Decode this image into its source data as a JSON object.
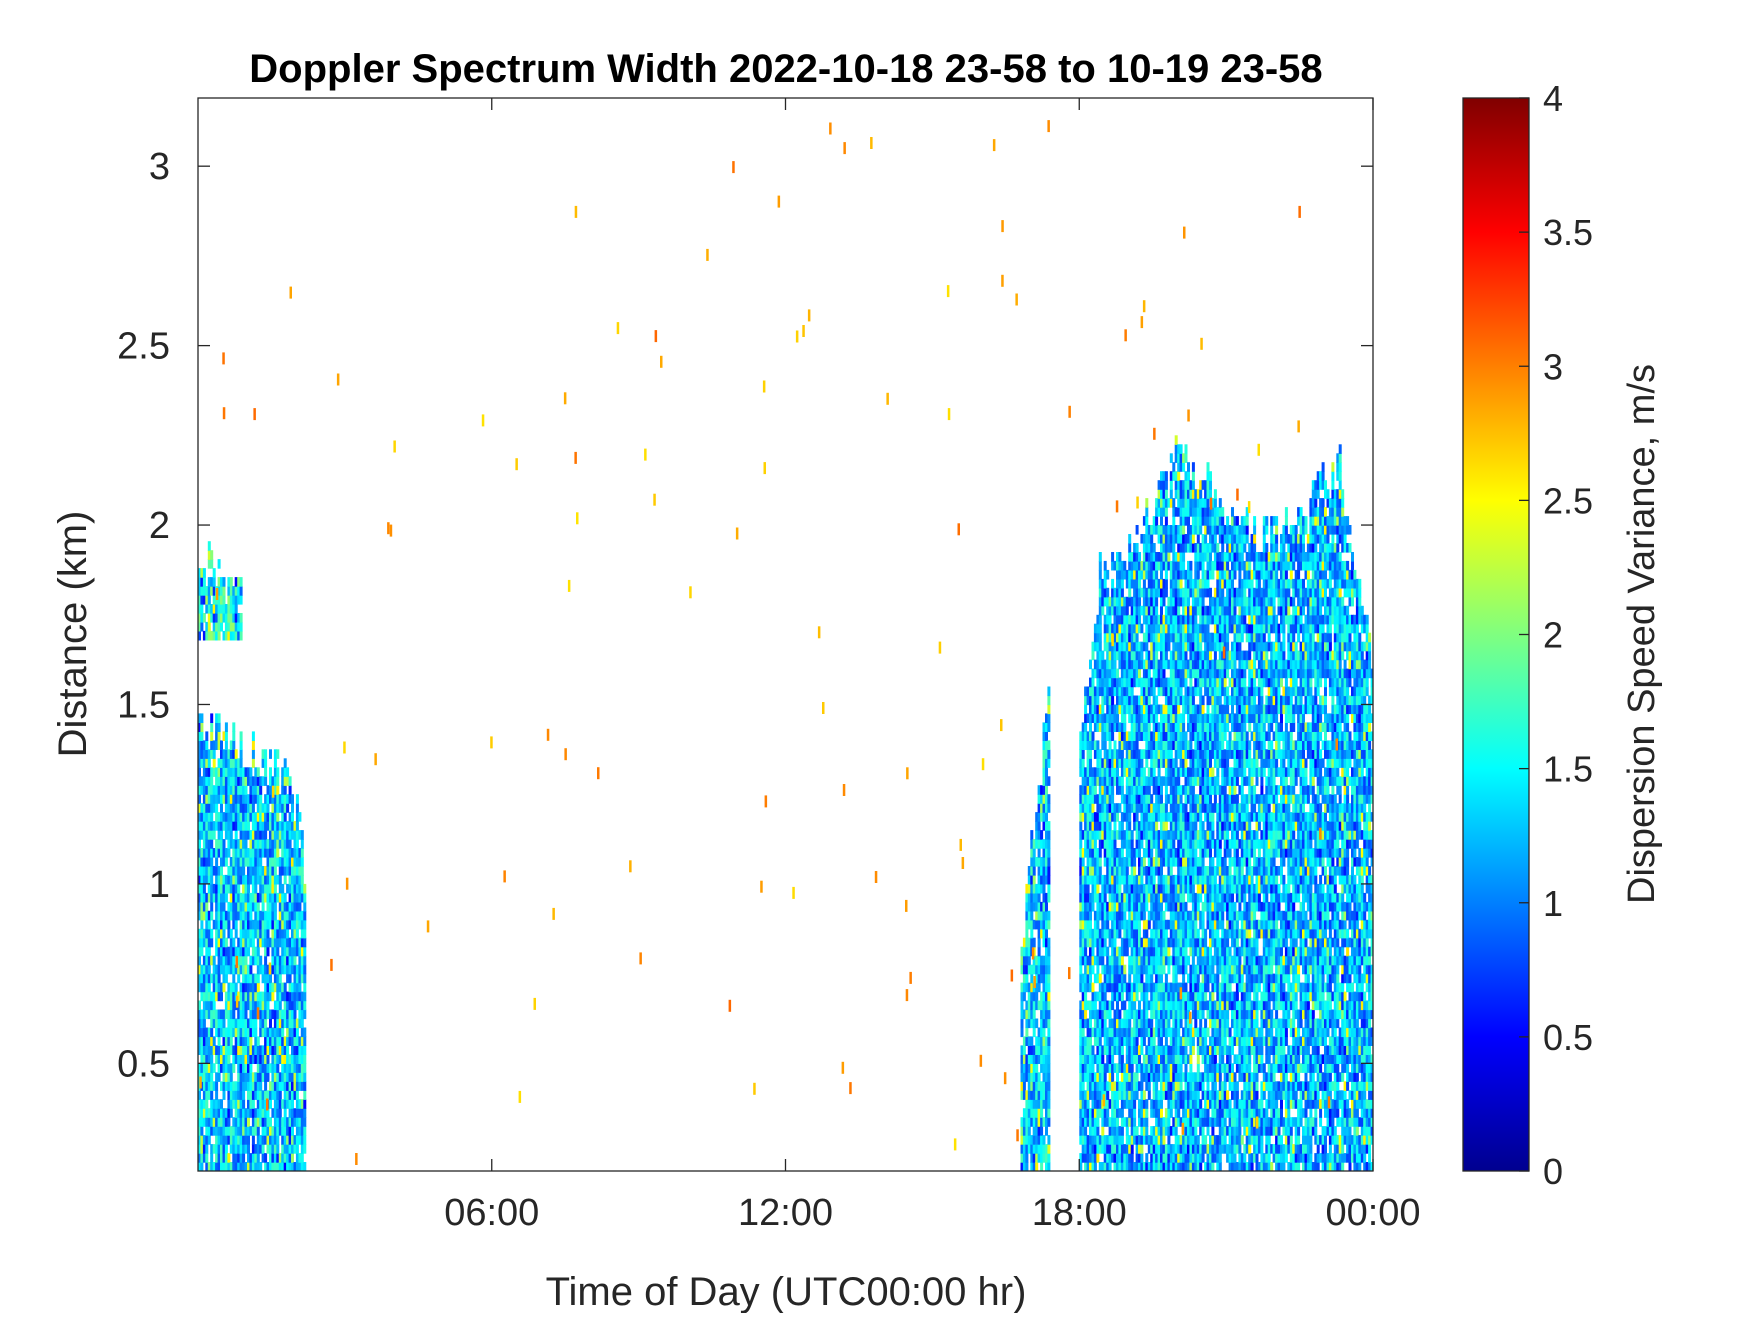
{
  "chart_data": {
    "type": "heatmap",
    "title": "Doppler Spectrum Width 2022-10-18 23-58 to 10-19 23-58",
    "xlabel": "Time of Day (UTC00:00 hr)",
    "ylabel": "Distance (km)",
    "colorbar_label": "Dispersion Speed Variance, m/s",
    "colormap": "jet",
    "xlim_hours": [
      0,
      24
    ],
    "ylim_km": [
      0.2,
      3.19
    ],
    "clim": [
      0,
      4
    ],
    "x_ticks": [
      {
        "value": 6,
        "label": "06:00"
      },
      {
        "value": 12,
        "label": "12:00"
      },
      {
        "value": 18,
        "label": "18:00"
      },
      {
        "value": 24,
        "label": "00:00"
      }
    ],
    "y_ticks": [
      {
        "value": 0.5,
        "label": "0.5"
      },
      {
        "value": 1,
        "label": "1"
      },
      {
        "value": 1.5,
        "label": "1.5"
      },
      {
        "value": 2,
        "label": "2"
      },
      {
        "value": 2.5,
        "label": "2.5"
      },
      {
        "value": 3,
        "label": "3"
      }
    ],
    "colorbar_ticks": [
      {
        "value": 0,
        "label": "0"
      },
      {
        "value": 0.5,
        "label": "0.5"
      },
      {
        "value": 1,
        "label": "1"
      },
      {
        "value": 1.5,
        "label": "1.5"
      },
      {
        "value": 2,
        "label": "2"
      },
      {
        "value": 2.5,
        "label": "2.5"
      },
      {
        "value": 3,
        "label": "3"
      },
      {
        "value": 3.5,
        "label": "3.5"
      },
      {
        "value": 4,
        "label": "4"
      }
    ],
    "grid": false,
    "regions": [
      {
        "name": "early-morning",
        "time_start": 0.0,
        "time_end": 2.2,
        "dist_min": 0.2,
        "dist_top_profile": [
          [
            0,
            1.45
          ],
          [
            0.3,
            1.43
          ],
          [
            0.8,
            1.37
          ],
          [
            1.2,
            1.35
          ],
          [
            1.6,
            1.3
          ],
          [
            2.0,
            1.25
          ],
          [
            2.2,
            0.9
          ]
        ],
        "mean_value": 1.3
      },
      {
        "name": "early-upper-patch",
        "time_start": 0.0,
        "time_end": 0.9,
        "dist_min": 1.68,
        "dist_top_profile": [
          [
            0,
            1.9
          ],
          [
            0.5,
            1.85
          ],
          [
            0.9,
            1.78
          ]
        ],
        "mean_value": 1.6
      },
      {
        "name": "afternoon-narrow-band",
        "time_start": 16.8,
        "time_end": 17.4,
        "dist_min": 0.2,
        "dist_top_profile": [
          [
            16.8,
            0.8
          ],
          [
            17.0,
            1.1
          ],
          [
            17.2,
            1.3
          ],
          [
            17.4,
            1.6
          ]
        ],
        "mean_value": 1.35
      },
      {
        "name": "evening-main",
        "time_start": 18.0,
        "time_end": 24.0,
        "dist_min": 0.2,
        "dist_top_profile": [
          [
            18.0,
            1.4
          ],
          [
            18.4,
            1.85
          ],
          [
            19.0,
            1.9
          ],
          [
            19.5,
            2.05
          ],
          [
            20.0,
            2.2
          ],
          [
            20.6,
            2.1
          ],
          [
            21.2,
            2.0
          ],
          [
            21.8,
            1.95
          ],
          [
            22.4,
            2.0
          ],
          [
            22.9,
            2.1
          ],
          [
            23.3,
            2.15
          ],
          [
            23.7,
            1.8
          ],
          [
            24.0,
            1.6
          ]
        ],
        "mean_value": 1.25
      }
    ]
  }
}
